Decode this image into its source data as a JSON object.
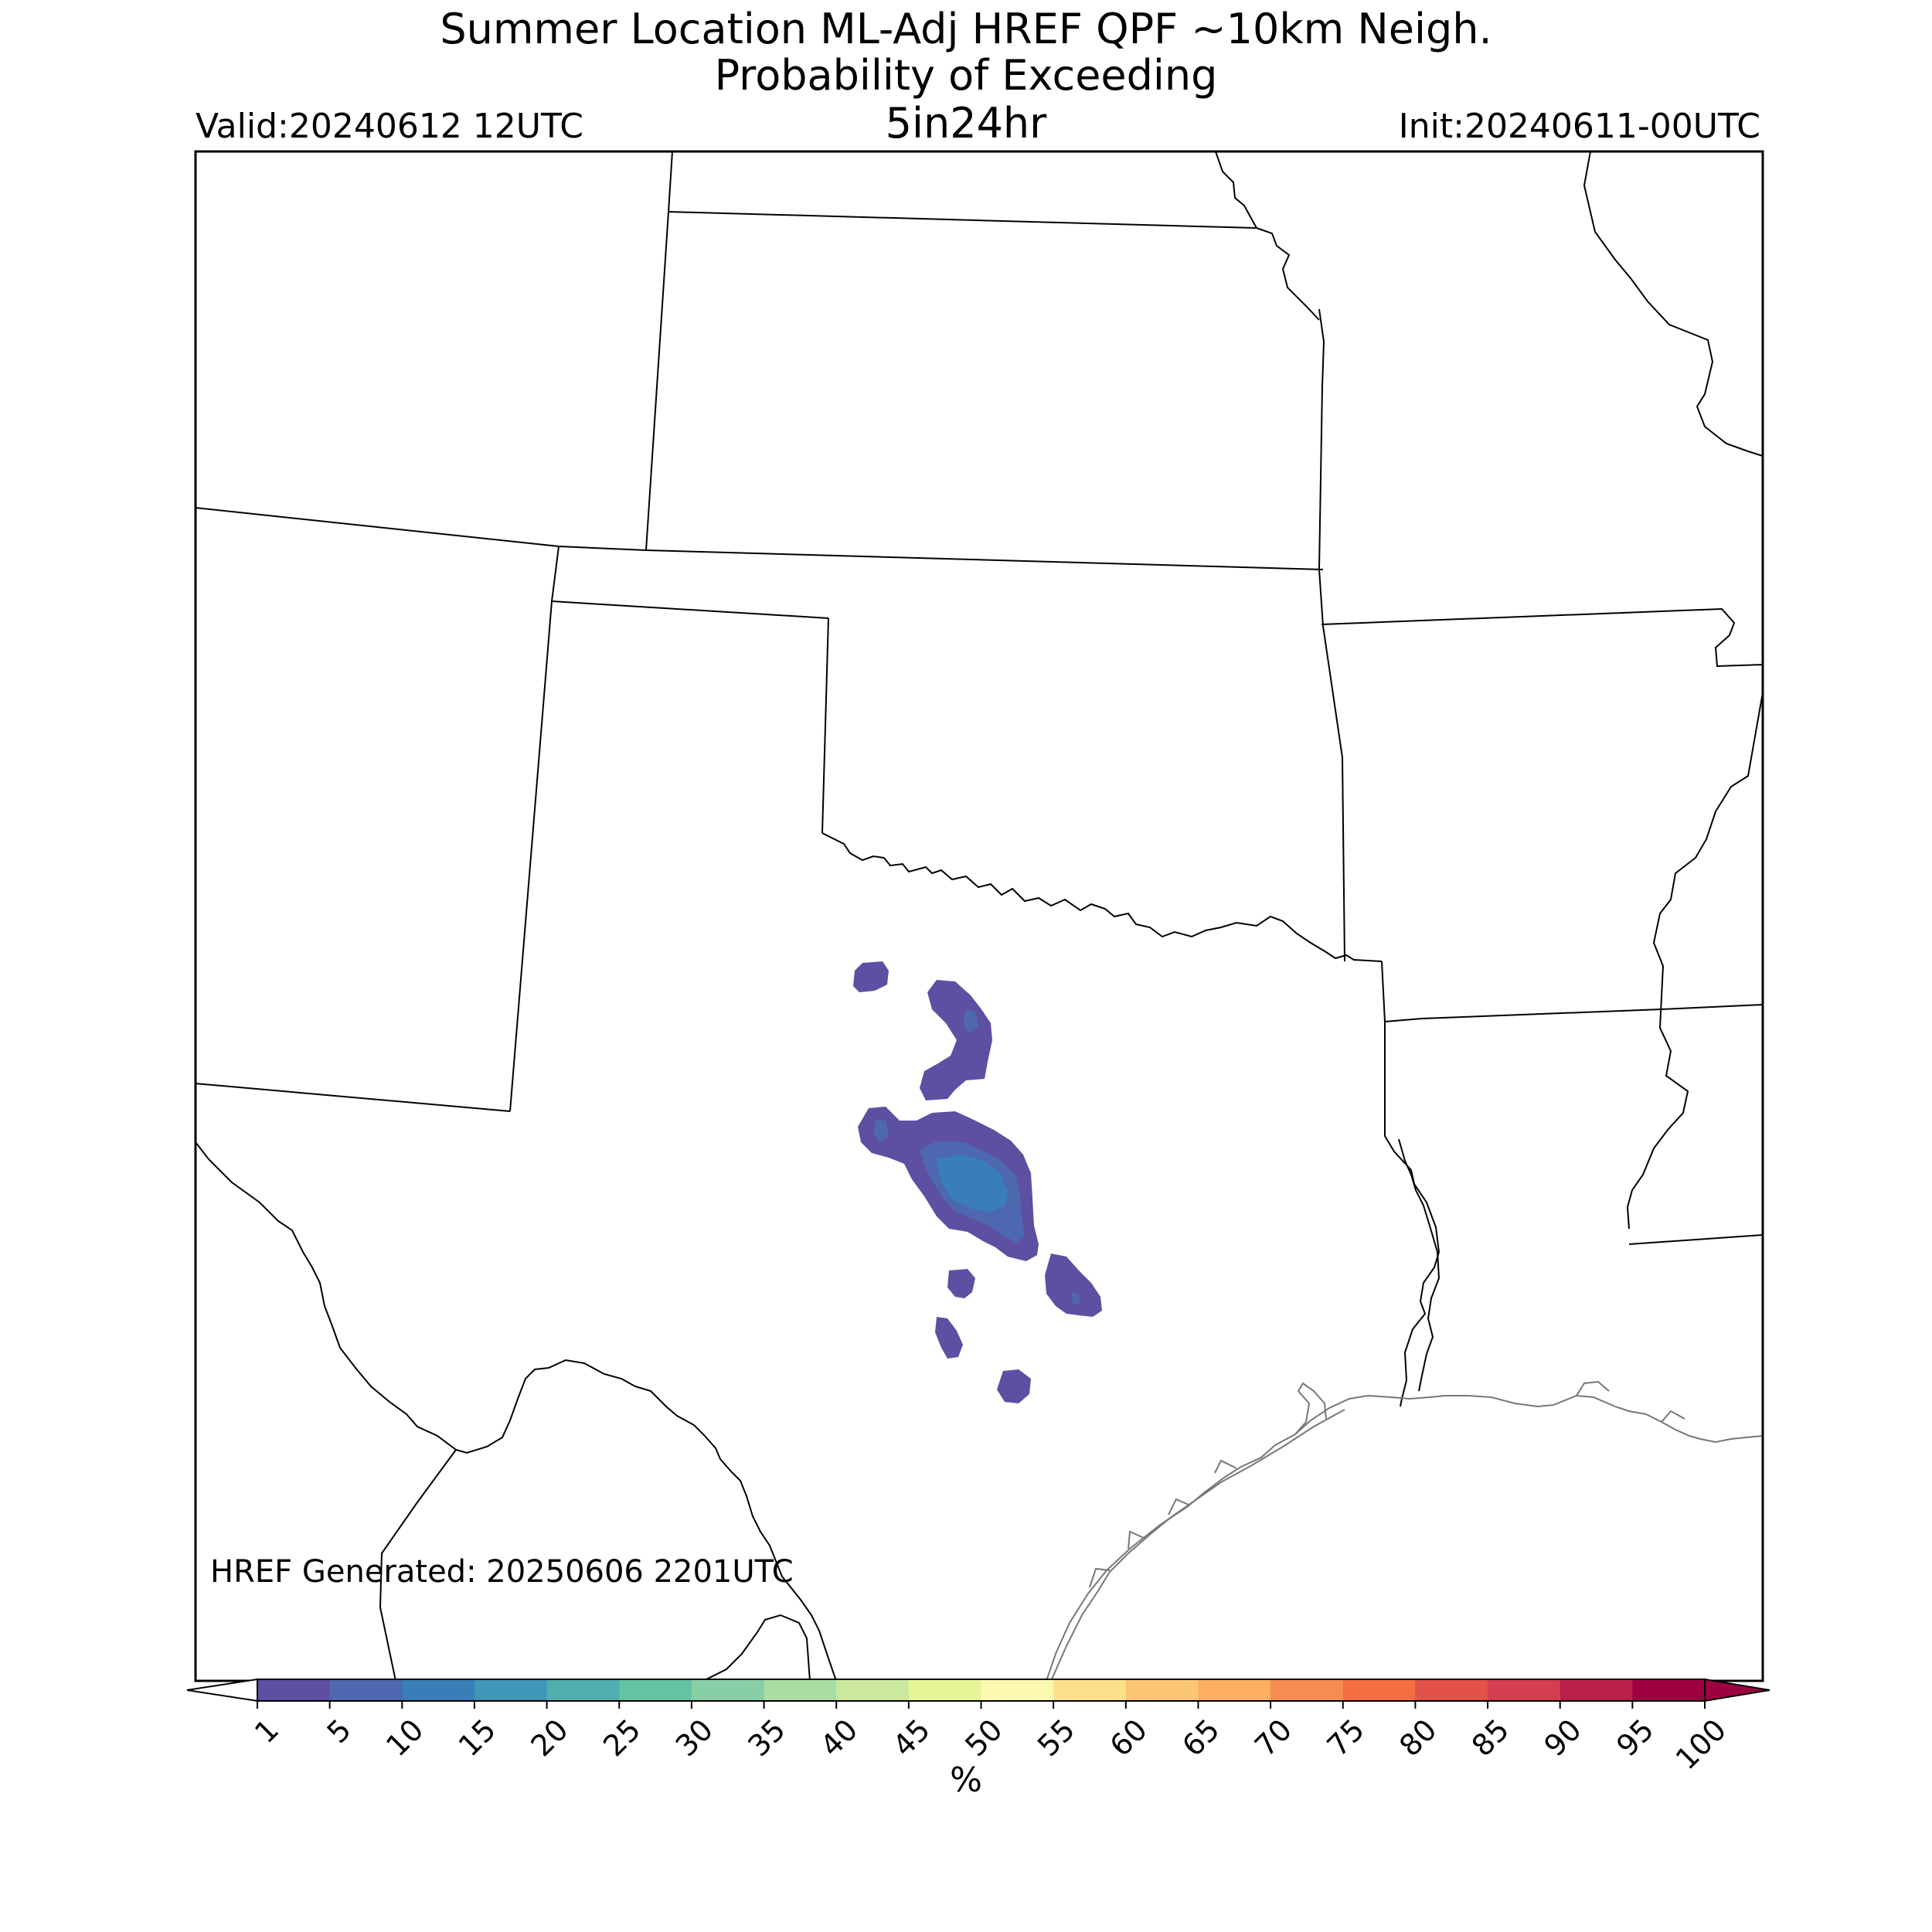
{
  "titles": {
    "line1": "Summer Location ML-Adj HREF QPF ~10km Neigh.",
    "line2": "Probability of Exceeding",
    "line3": "5in24hr",
    "valid": "Valid:20240612 12UTC",
    "init": "Init:20240611-00UTC"
  },
  "footer": {
    "generated": "HREF Generated: 20250606 2201UTC"
  },
  "colorbar": {
    "unit": "%",
    "ticks": [
      "1",
      "5",
      "10",
      "15",
      "20",
      "25",
      "30",
      "35",
      "40",
      "45",
      "50",
      "55",
      "60",
      "65",
      "70",
      "75",
      "80",
      "85",
      "90",
      "95",
      "100"
    ],
    "colors": [
      "#5e4fa2",
      "#4d68b0",
      "#3a7eb9",
      "#3f96b7",
      "#50aeaf",
      "#66c2a5",
      "#87cfa4",
      "#aadda2",
      "#cbe99d",
      "#e6f598",
      "#fbf8b0",
      "#fee08b",
      "#fdc674",
      "#fdae61",
      "#f68c52",
      "#f46d43",
      "#e2514a",
      "#d53e4f",
      "#bb2049",
      "#9e0142"
    ],
    "under_color": "#ffffff",
    "over_color": "#9e0142"
  }
}
